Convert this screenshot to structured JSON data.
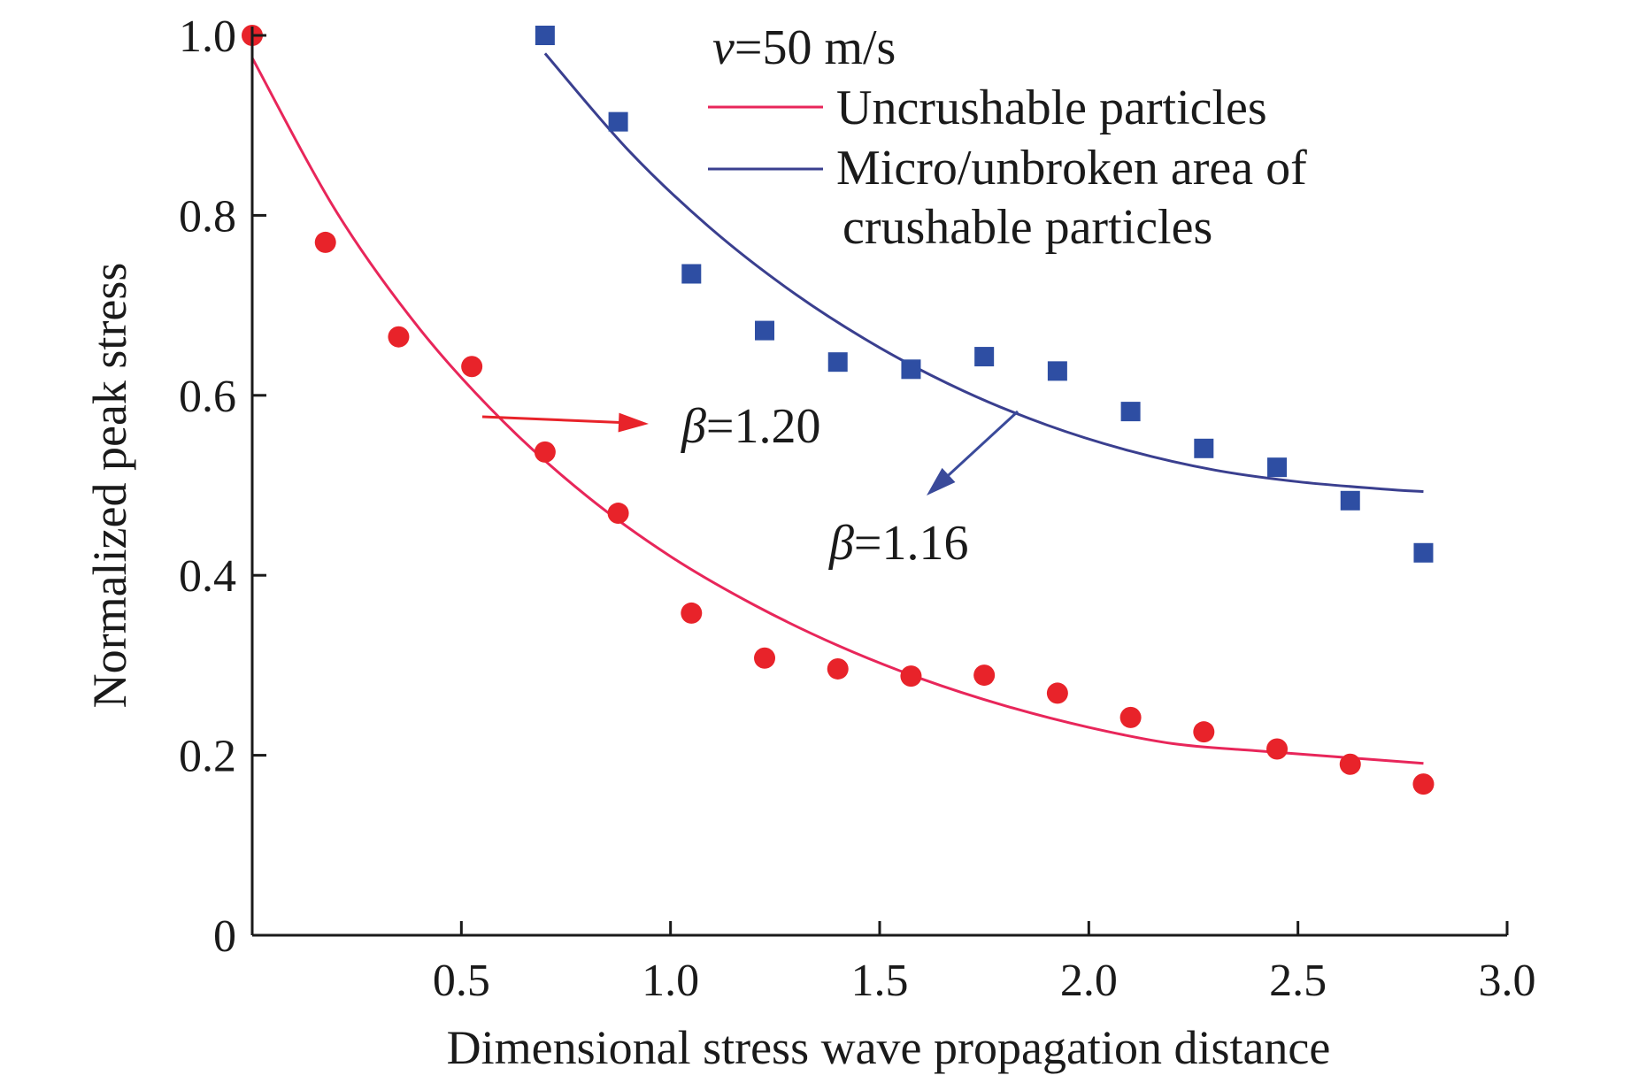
{
  "chart_data": {
    "type": "scatter",
    "title": "",
    "xlabel": "Dimensional stress wave propagation distance",
    "ylabel": "Normalized peak stress",
    "xlim": [
      0,
      3.0
    ],
    "ylim": [
      0,
      1.0
    ],
    "x_ticks": [
      0.5,
      1.0,
      1.5,
      2.0,
      2.5,
      3.0
    ],
    "x_tick_labels": [
      "0.5",
      "1.0",
      "1.5",
      "2.0",
      "2.5",
      "3.0"
    ],
    "y_ticks": [
      0,
      0.2,
      0.4,
      0.6,
      0.8,
      1.0
    ],
    "y_tick_labels": [
      "0",
      "0.2",
      "0.4",
      "0.6",
      "0.8",
      "1.0"
    ],
    "grid": false,
    "legend_position": "top-right",
    "legend_title": "v=50 m/s",
    "legend_title_parts": {
      "symbol": "v",
      "rest": "=50 m/s"
    },
    "series": [
      {
        "name": "Uncrushable particles",
        "color": "#e8232a",
        "marker": "circle",
        "x": [
          0.0,
          0.175,
          0.35,
          0.525,
          0.7,
          0.875,
          1.05,
          1.225,
          1.4,
          1.575,
          1.75,
          1.925,
          2.1,
          2.275,
          2.45,
          2.625,
          2.8
        ],
        "y": [
          1.0,
          0.77,
          0.665,
          0.632,
          0.537,
          0.469,
          0.358,
          0.308,
          0.296,
          0.288,
          0.289,
          0.269,
          0.242,
          0.226,
          0.207,
          0.19,
          0.168
        ],
        "fit": {
          "color": "#e8265a",
          "x": [
            0.0,
            0.2,
            0.4,
            0.6,
            0.8,
            1.0,
            1.2,
            1.4,
            1.6,
            1.8,
            2.0,
            2.2,
            2.4,
            2.6,
            2.8
          ],
          "y": [
            0.975,
            0.805,
            0.674,
            0.571,
            0.488,
            0.421,
            0.367,
            0.322,
            0.285,
            0.255,
            0.231,
            0.213,
            0.205,
            0.198,
            0.191
          ]
        },
        "annotation": {
          "symbol": "β",
          "rest": "=1.20",
          "arrow_color": "#e8232a"
        }
      },
      {
        "name": "Micro/unbroken area of crushable particles",
        "name_lines": [
          "Micro/unbroken area of",
          "crushable particles"
        ],
        "color": "#2e4ea3",
        "marker": "square",
        "x": [
          0.7,
          0.875,
          1.05,
          1.225,
          1.4,
          1.575,
          1.75,
          1.925,
          2.1,
          2.275,
          2.45,
          2.625,
          2.8
        ],
        "y": [
          1.0,
          0.904,
          0.735,
          0.672,
          0.637,
          0.629,
          0.643,
          0.627,
          0.582,
          0.541,
          0.52,
          0.483,
          0.425
        ],
        "fit": {
          "color": "#3a3f8f",
          "x": [
            0.7,
            0.9,
            1.1,
            1.3,
            1.5,
            1.7,
            1.9,
            2.1,
            2.3,
            2.5,
            2.7,
            2.8
          ],
          "y": [
            0.98,
            0.872,
            0.784,
            0.712,
            0.653,
            0.605,
            0.567,
            0.538,
            0.517,
            0.504,
            0.496,
            0.493
          ]
        },
        "annotation": {
          "symbol": "β",
          "rest": "=1.16",
          "arrow_color": "#3a4a9a"
        }
      }
    ]
  }
}
